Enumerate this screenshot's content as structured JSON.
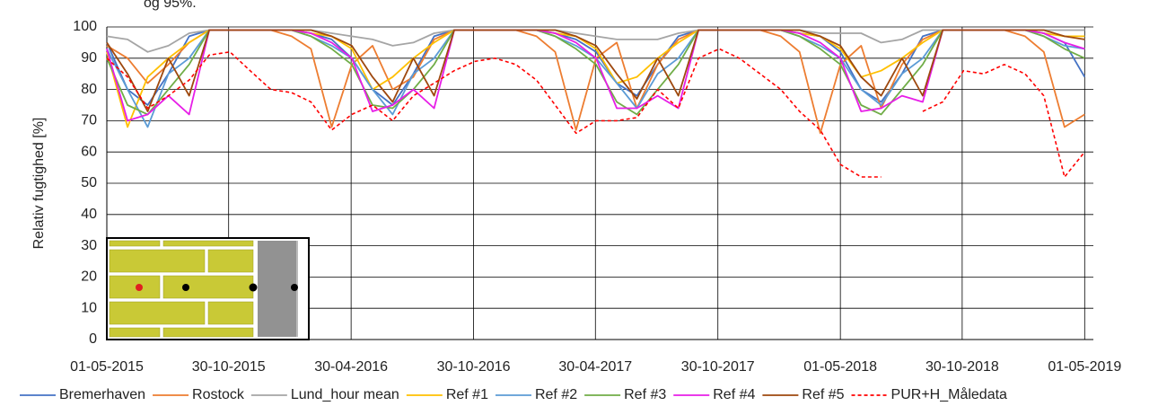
{
  "caption": "og 95%.",
  "chart_data": {
    "type": "line",
    "ylabel": "Relativ fugtighed [%]",
    "x": [
      "01-05-2015",
      "01-06-2015",
      "01-07-2015",
      "01-08-2015",
      "01-09-2015",
      "01-10-2015",
      "01-11-2015",
      "01-12-2015",
      "01-01-2016",
      "01-02-2016",
      "01-03-2016",
      "01-04-2016",
      "01-05-2016",
      "01-06-2016",
      "01-07-2016",
      "01-08-2016",
      "01-09-2016",
      "01-10-2016",
      "01-11-2016",
      "01-12-2016",
      "01-01-2017",
      "01-02-2017",
      "01-03-2017",
      "01-04-2017",
      "01-05-2017",
      "01-06-2017",
      "01-07-2017",
      "01-08-2017",
      "01-09-2017",
      "01-10-2017",
      "01-11-2017",
      "01-12-2017",
      "01-01-2018",
      "01-02-2018",
      "01-03-2018",
      "01-04-2018",
      "01-05-2018",
      "01-06-2018",
      "01-07-2018",
      "01-08-2018",
      "01-09-2018",
      "01-10-2018",
      "01-11-2018",
      "01-12-2018",
      "01-01-2019",
      "01-02-2019",
      "01-03-2019",
      "01-04-2019",
      "01-05-2019"
    ],
    "xlim": [
      "01-05-2015",
      "14-05-2019"
    ],
    "xticks": [
      "01-05-2015",
      "30-10-2015",
      "30-04-2016",
      "30-10-2016",
      "30-04-2017",
      "30-10-2017",
      "01-05-2018",
      "30-10-2018",
      "01-05-2019"
    ],
    "ylim": [
      0,
      100
    ],
    "yticks": [
      0,
      10,
      20,
      30,
      40,
      50,
      60,
      70,
      80,
      90,
      100
    ],
    "grid": true,
    "legend": "bottom",
    "series": [
      {
        "name": "Bremerhaven",
        "color": "#4472c4",
        "values": [
          95,
          80,
          75,
          85,
          97,
          99,
          99,
          99,
          99,
          99,
          98,
          96,
          90,
          80,
          75,
          85,
          97,
          99,
          99,
          99,
          99,
          99,
          98,
          96,
          92,
          82,
          78,
          88,
          97,
          99,
          99,
          99,
          99,
          99,
          98,
          97,
          92,
          80,
          76,
          85,
          97,
          99,
          99,
          99,
          99,
          99,
          98,
          95,
          84
        ]
      },
      {
        "name": "Rostock",
        "color": "#ed7d31",
        "values": [
          94,
          90,
          82,
          88,
          95,
          99,
          99,
          99,
          99,
          97,
          93,
          68,
          88,
          94,
          80,
          84,
          96,
          99,
          99,
          99,
          99,
          97,
          92,
          67,
          90,
          95,
          74,
          88,
          96,
          99,
          99,
          99,
          99,
          97,
          92,
          66,
          88,
          94,
          74,
          88,
          96,
          99,
          99,
          99,
          99,
          97,
          92,
          68,
          72
        ]
      },
      {
        "name": "Lund_hour mean",
        "color": "#a5a5a5",
        "values": [
          97,
          96,
          92,
          94,
          98,
          99,
          99,
          99,
          99,
          99,
          99,
          98,
          97,
          96,
          94,
          95,
          98,
          99,
          99,
          99,
          99,
          99,
          99,
          98,
          97,
          96,
          96,
          96,
          98,
          99,
          99,
          99,
          99,
          99,
          99,
          98,
          98,
          98,
          95,
          96,
          99,
          99,
          99,
          99,
          99,
          99,
          99,
          99,
          99
        ]
      },
      {
        "name": "Ref #1",
        "color": "#ffc000",
        "values": [
          92,
          68,
          84,
          90,
          95,
          99,
          99,
          99,
          99,
          99,
          98,
          97,
          93,
          80,
          84,
          90,
          95,
          99,
          99,
          99,
          99,
          99,
          98,
          97,
          93,
          82,
          84,
          90,
          95,
          99,
          99,
          99,
          99,
          99,
          98,
          97,
          93,
          84,
          86,
          90,
          95,
          99,
          99,
          99,
          99,
          99,
          98,
          97,
          97
        ]
      },
      {
        "name": "Ref #2",
        "color": "#5b9bd5",
        "values": [
          93,
          80,
          68,
          85,
          90,
          99,
          99,
          99,
          99,
          99,
          97,
          94,
          90,
          80,
          72,
          85,
          90,
          99,
          99,
          99,
          99,
          99,
          97,
          94,
          90,
          82,
          74,
          85,
          90,
          99,
          99,
          99,
          99,
          99,
          97,
          94,
          90,
          80,
          75,
          85,
          90,
          99,
          99,
          99,
          99,
          99,
          97,
          94,
          93
        ]
      },
      {
        "name": "Ref #3",
        "color": "#70ad47",
        "values": [
          90,
          75,
          72,
          80,
          88,
          99,
          99,
          99,
          99,
          99,
          97,
          93,
          88,
          75,
          74,
          80,
          88,
          99,
          99,
          99,
          99,
          99,
          97,
          93,
          88,
          76,
          72,
          80,
          88,
          99,
          99,
          99,
          99,
          99,
          97,
          93,
          88,
          75,
          72,
          80,
          88,
          99,
          99,
          99,
          99,
          99,
          97,
          93,
          90
        ]
      },
      {
        "name": "Ref #4",
        "color": "#e71ee7",
        "values": [
          93,
          70,
          72,
          78,
          72,
          99,
          99,
          99,
          99,
          99,
          98,
          95,
          90,
          73,
          75,
          80,
          74,
          99,
          99,
          99,
          99,
          99,
          98,
          95,
          90,
          74,
          74,
          78,
          74,
          99,
          99,
          99,
          99,
          99,
          98,
          95,
          90,
          73,
          74,
          78,
          76,
          99,
          99,
          99,
          99,
          99,
          98,
          95,
          93
        ]
      },
      {
        "name": "Ref #5",
        "color": "#9e480e",
        "values": [
          95,
          85,
          73,
          90,
          78,
          99,
          99,
          99,
          99,
          99,
          99,
          97,
          94,
          84,
          76,
          90,
          78,
          99,
          99,
          99,
          99,
          99,
          99,
          97,
          94,
          85,
          77,
          90,
          78,
          99,
          99,
          99,
          99,
          99,
          99,
          97,
          94,
          84,
          78,
          90,
          78,
          99,
          99,
          99,
          99,
          99,
          99,
          97,
          96
        ]
      },
      {
        "name": "PUR+H_Måledata",
        "color": "#ff0000",
        "dashed": true,
        "values": [
          90,
          84,
          74,
          78,
          83,
          91,
          92,
          86,
          80,
          79,
          76,
          67,
          72,
          75,
          70,
          78,
          82,
          86,
          89,
          90,
          88,
          83,
          75,
          66,
          70,
          70,
          71,
          80,
          74,
          90,
          93,
          90,
          85,
          80,
          73,
          67,
          56,
          52,
          52,
          null,
          73,
          76,
          86,
          85,
          88,
          85,
          78,
          52,
          60
        ]
      }
    ]
  }
}
